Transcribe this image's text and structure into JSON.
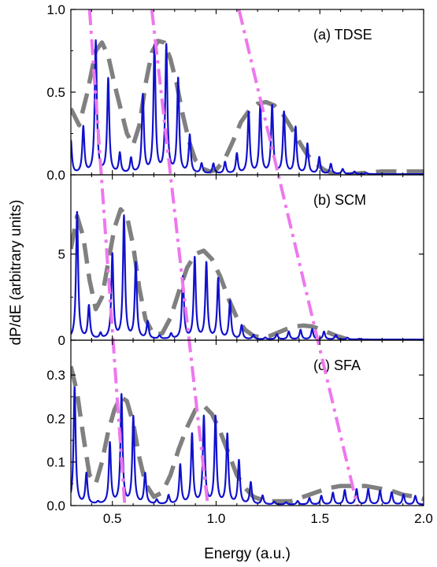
{
  "figure": {
    "xlabel": "Energy (a.u.)",
    "ylabel": "dP/dE (arbitrary units)"
  },
  "colors": {
    "spectrum": "#1111cc",
    "envelope": "#808080",
    "guide": "#ee77ee",
    "axis": "#000000"
  },
  "chart_data": [
    {
      "type": "line",
      "panel_label": "(a) TDSE",
      "xlim": [
        0.3,
        2.0
      ],
      "ylim": [
        0.0,
        1.0
      ],
      "xticks": [
        "0.5",
        "1.0",
        "1.5",
        "2.0"
      ],
      "yticks": [
        {
          "value": 0.0,
          "label": "0.0"
        },
        {
          "value": 0.5,
          "label": "0.5"
        },
        {
          "value": 1.0,
          "label": "1.0"
        }
      ],
      "series": [
        {
          "role": "spectrum",
          "peak_spacing": 0.0566,
          "peak_width": 0.006,
          "baseline": 0.004,
          "peaks": [
            [
              0.3,
              0.2
            ],
            [
              0.36,
              0.28
            ],
            [
              0.42,
              0.8
            ],
            [
              0.48,
              0.57
            ],
            [
              0.536,
              0.12
            ],
            [
              0.59,
              0.09
            ],
            [
              0.647,
              0.47
            ],
            [
              0.703,
              0.77
            ],
            [
              0.76,
              0.77
            ],
            [
              0.817,
              0.57
            ],
            [
              0.873,
              0.23
            ],
            [
              0.93,
              0.06
            ],
            [
              0.987,
              0.06
            ],
            [
              1.043,
              0.07
            ],
            [
              1.1,
              0.12
            ],
            [
              1.157,
              0.37
            ],
            [
              1.213,
              0.41
            ],
            [
              1.27,
              0.41
            ],
            [
              1.327,
              0.37
            ],
            [
              1.383,
              0.28
            ],
            [
              1.44,
              0.18
            ],
            [
              1.497,
              0.1
            ],
            [
              1.553,
              0.06
            ],
            [
              1.61,
              0.03
            ],
            [
              1.667,
              0.015
            ],
            [
              1.723,
              0.008
            ]
          ]
        },
        {
          "role": "envelope",
          "points": [
            [
              0.3,
              0.4
            ],
            [
              0.34,
              0.3
            ],
            [
              0.38,
              0.5
            ],
            [
              0.42,
              0.75
            ],
            [
              0.45,
              0.8
            ],
            [
              0.48,
              0.72
            ],
            [
              0.51,
              0.55
            ],
            [
              0.54,
              0.4
            ],
            [
              0.57,
              0.25
            ],
            [
              0.6,
              0.18
            ],
            [
              0.63,
              0.3
            ],
            [
              0.66,
              0.55
            ],
            [
              0.69,
              0.74
            ],
            [
              0.72,
              0.81
            ],
            [
              0.75,
              0.8
            ],
            [
              0.78,
              0.7
            ],
            [
              0.81,
              0.55
            ],
            [
              0.84,
              0.36
            ],
            [
              0.87,
              0.2
            ],
            [
              0.9,
              0.09
            ],
            [
              0.93,
              0.04
            ],
            [
              0.97,
              0.02
            ],
            [
              1.0,
              0.03
            ],
            [
              1.04,
              0.09
            ],
            [
              1.08,
              0.2
            ],
            [
              1.12,
              0.32
            ],
            [
              1.16,
              0.39
            ],
            [
              1.2,
              0.43
            ],
            [
              1.24,
              0.44
            ],
            [
              1.28,
              0.42
            ],
            [
              1.32,
              0.37
            ],
            [
              1.36,
              0.29
            ],
            [
              1.4,
              0.2
            ],
            [
              1.44,
              0.12
            ],
            [
              1.48,
              0.07
            ],
            [
              1.52,
              0.03
            ],
            [
              1.56,
              0.01
            ],
            [
              1.62,
              0.0
            ],
            [
              1.7,
              0.01
            ],
            [
              1.8,
              0.02
            ],
            [
              1.9,
              0.02
            ],
            [
              2.0,
              0.02
            ]
          ]
        }
      ]
    },
    {
      "type": "line",
      "panel_label": "(b) SCM",
      "xlim": [
        0.3,
        2.0
      ],
      "ylim": [
        0.0,
        9.6
      ],
      "xticks": [
        "0.5",
        "1.0",
        "1.5",
        "2.0"
      ],
      "yticks": [
        {
          "value": 0,
          "label": "0"
        },
        {
          "value": 5,
          "label": "5"
        }
      ],
      "series": [
        {
          "role": "spectrum",
          "peak_spacing": 0.0566,
          "peak_width": 0.006,
          "baseline": 0.04,
          "peaks": [
            [
              0.33,
              7.4
            ],
            [
              0.387,
              1.9
            ],
            [
              0.443,
              0.3
            ],
            [
              0.5,
              4.9
            ],
            [
              0.556,
              7.1
            ],
            [
              0.613,
              4.4
            ],
            [
              0.67,
              1.0
            ],
            [
              0.727,
              0.2
            ],
            [
              0.783,
              0.3
            ],
            [
              0.84,
              3.6
            ],
            [
              0.897,
              4.7
            ],
            [
              0.953,
              4.4
            ],
            [
              1.01,
              3.5
            ],
            [
              1.067,
              2.2
            ],
            [
              1.123,
              0.8
            ],
            [
              1.18,
              0.25
            ],
            [
              1.237,
              0.1
            ],
            [
              1.293,
              0.3
            ],
            [
              1.35,
              0.45
            ],
            [
              1.407,
              0.55
            ],
            [
              1.463,
              0.6
            ],
            [
              1.52,
              0.45
            ],
            [
              1.577,
              0.25
            ],
            [
              1.633,
              0.1
            ],
            [
              1.69,
              0.04
            ]
          ]
        },
        {
          "role": "envelope",
          "points": [
            [
              0.3,
              5.3
            ],
            [
              0.33,
              7.2
            ],
            [
              0.36,
              6.0
            ],
            [
              0.39,
              3.5
            ],
            [
              0.42,
              1.8
            ],
            [
              0.45,
              2.5
            ],
            [
              0.48,
              4.5
            ],
            [
              0.51,
              6.5
            ],
            [
              0.54,
              7.6
            ],
            [
              0.57,
              7.2
            ],
            [
              0.6,
              5.5
            ],
            [
              0.63,
              3.0
            ],
            [
              0.66,
              1.2
            ],
            [
              0.7,
              0.3
            ],
            [
              0.74,
              0.4
            ],
            [
              0.78,
              1.3
            ],
            [
              0.82,
              2.8
            ],
            [
              0.86,
              4.2
            ],
            [
              0.9,
              5.0
            ],
            [
              0.94,
              5.2
            ],
            [
              0.98,
              4.7
            ],
            [
              1.02,
              3.7
            ],
            [
              1.06,
              2.4
            ],
            [
              1.1,
              1.3
            ],
            [
              1.14,
              0.6
            ],
            [
              1.18,
              0.25
            ],
            [
              1.22,
              0.15
            ],
            [
              1.26,
              0.25
            ],
            [
              1.3,
              0.45
            ],
            [
              1.34,
              0.65
            ],
            [
              1.38,
              0.8
            ],
            [
              1.42,
              0.85
            ],
            [
              1.46,
              0.8
            ],
            [
              1.5,
              0.65
            ],
            [
              1.54,
              0.45
            ],
            [
              1.58,
              0.25
            ],
            [
              1.62,
              0.1
            ],
            [
              1.66,
              0.04
            ]
          ]
        }
      ]
    },
    {
      "type": "line",
      "panel_label": "(c) SFA",
      "xlim": [
        0.3,
        2.0
      ],
      "ylim": [
        0.0,
        0.38
      ],
      "xticks": [
        "0.5",
        "1.0",
        "1.5",
        "2.0"
      ],
      "yticks": [
        {
          "value": 0.0,
          "label": "0.0"
        },
        {
          "value": 0.1,
          "label": "0.1"
        },
        {
          "value": 0.2,
          "label": "0.2"
        },
        {
          "value": 0.3,
          "label": "0.3"
        }
      ],
      "series": [
        {
          "role": "spectrum",
          "peak_spacing": 0.0566,
          "peak_width": 0.006,
          "baseline": 0.002,
          "peaks": [
            [
              0.318,
              0.27
            ],
            [
              0.375,
              0.07
            ],
            [
              0.431,
              0.005
            ],
            [
              0.488,
              0.14
            ],
            [
              0.544,
              0.25
            ],
            [
              0.601,
              0.2
            ],
            [
              0.658,
              0.07
            ],
            [
              0.714,
              0.01
            ],
            [
              0.771,
              0.02
            ],
            [
              0.827,
              0.09
            ],
            [
              0.884,
              0.16
            ],
            [
              0.941,
              0.2
            ],
            [
              0.997,
              0.2
            ],
            [
              1.054,
              0.16
            ],
            [
              1.11,
              0.1
            ],
            [
              1.167,
              0.05
            ],
            [
              1.224,
              0.02
            ],
            [
              1.28,
              0.006
            ],
            [
              1.337,
              0.005
            ],
            [
              1.393,
              0.008
            ],
            [
              1.45,
              0.015
            ],
            [
              1.507,
              0.02
            ],
            [
              1.563,
              0.027
            ],
            [
              1.62,
              0.033
            ],
            [
              1.677,
              0.035
            ],
            [
              1.733,
              0.035
            ],
            [
              1.79,
              0.032
            ],
            [
              1.846,
              0.028
            ],
            [
              1.903,
              0.023
            ],
            [
              1.96,
              0.02
            ]
          ]
        },
        {
          "role": "envelope",
          "points": [
            [
              0.3,
              0.32
            ],
            [
              0.33,
              0.26
            ],
            [
              0.36,
              0.16
            ],
            [
              0.39,
              0.07
            ],
            [
              0.42,
              0.05
            ],
            [
              0.45,
              0.1
            ],
            [
              0.48,
              0.17
            ],
            [
              0.51,
              0.22
            ],
            [
              0.54,
              0.25
            ],
            [
              0.57,
              0.24
            ],
            [
              0.6,
              0.19
            ],
            [
              0.63,
              0.11
            ],
            [
              0.66,
              0.05
            ],
            [
              0.7,
              0.02
            ],
            [
              0.74,
              0.03
            ],
            [
              0.78,
              0.07
            ],
            [
              0.82,
              0.13
            ],
            [
              0.86,
              0.18
            ],
            [
              0.9,
              0.22
            ],
            [
              0.94,
              0.23
            ],
            [
              0.98,
              0.21
            ],
            [
              1.02,
              0.17
            ],
            [
              1.06,
              0.12
            ],
            [
              1.1,
              0.07
            ],
            [
              1.14,
              0.04
            ],
            [
              1.18,
              0.02
            ],
            [
              1.24,
              0.01
            ],
            [
              1.3,
              0.01
            ],
            [
              1.36,
              0.01
            ],
            [
              1.42,
              0.02
            ],
            [
              1.48,
              0.03
            ],
            [
              1.54,
              0.04
            ],
            [
              1.6,
              0.045
            ],
            [
              1.66,
              0.045
            ],
            [
              1.72,
              0.045
            ],
            [
              1.78,
              0.04
            ],
            [
              1.84,
              0.035
            ],
            [
              1.9,
              0.025
            ],
            [
              1.96,
              0.02
            ],
            [
              2.0,
              0.015
            ]
          ]
        }
      ]
    }
  ],
  "guides": [
    {
      "x_top": 0.39,
      "x_bottom": 0.56
    },
    {
      "x_top": 0.69,
      "x_bottom": 0.96
    },
    {
      "x_top": 1.11,
      "x_bottom": 1.68
    }
  ]
}
